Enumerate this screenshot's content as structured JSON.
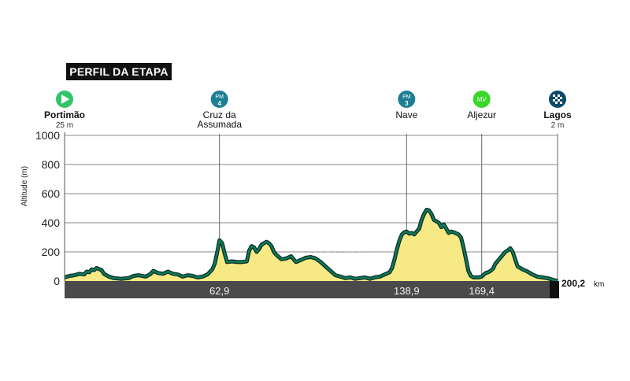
{
  "header": {
    "title": "PERFIL DA ETAPA"
  },
  "colors": {
    "profile_fill": "#f7e983",
    "profile_stroke": "#0f7a5a",
    "start": "#33c46b",
    "climb": "#1d7f93",
    "sprint": "#3ad62a",
    "finish": "#0d4a6b",
    "road": "#4a4a4a"
  },
  "chart_data": {
    "type": "area",
    "ylabel": "Altitude (m)",
    "yticks": [
      "0",
      "200",
      "400",
      "600",
      "800",
      "1000"
    ],
    "ylim": [
      0,
      1000
    ],
    "xlim": [
      0,
      200.2
    ],
    "grid": true,
    "km_labels": [
      "62,9",
      "138,9",
      "169,4"
    ],
    "total_distance": {
      "value": "200,2",
      "unit": "km"
    },
    "waypoints": [
      {
        "km": 0,
        "name": "Portimão",
        "altitude_label": "25 m",
        "marker": "start",
        "icon": "start-flag-icon",
        "badge": "",
        "bold": true
      },
      {
        "km": 62.9,
        "name": "Cruz da Assumada",
        "altitude_label": "",
        "marker": "climb",
        "icon": "mountain-pass-icon",
        "badge": "PM 4",
        "bold": false
      },
      {
        "km": 138.9,
        "name": "Nave",
        "altitude_label": "",
        "marker": "climb",
        "icon": "mountain-pass-icon",
        "badge": "PM 3",
        "bold": false
      },
      {
        "km": 169.4,
        "name": "Aljezur",
        "altitude_label": "",
        "marker": "sprint",
        "icon": "sprint-icon",
        "badge": "MV",
        "bold": false
      },
      {
        "km": 200.2,
        "name": "Lagos",
        "altitude_label": "2 m",
        "marker": "finish",
        "icon": "checkered-flag-icon",
        "badge": "",
        "bold": true
      }
    ],
    "profile": [
      [
        0,
        25
      ],
      [
        2,
        35
      ],
      [
        4,
        40
      ],
      [
        6,
        50
      ],
      [
        8,
        45
      ],
      [
        9,
        65
      ],
      [
        10,
        60
      ],
      [
        11,
        80
      ],
      [
        12,
        75
      ],
      [
        13,
        90
      ],
      [
        15,
        75
      ],
      [
        16,
        50
      ],
      [
        18,
        30
      ],
      [
        20,
        20
      ],
      [
        23,
        15
      ],
      [
        26,
        20
      ],
      [
        28,
        35
      ],
      [
        30,
        40
      ],
      [
        33,
        30
      ],
      [
        35,
        50
      ],
      [
        36,
        70
      ],
      [
        38,
        55
      ],
      [
        40,
        50
      ],
      [
        42,
        65
      ],
      [
        44,
        50
      ],
      [
        46,
        45
      ],
      [
        48,
        30
      ],
      [
        50,
        40
      ],
      [
        52,
        35
      ],
      [
        54,
        25
      ],
      [
        56,
        30
      ],
      [
        58,
        45
      ],
      [
        60,
        80
      ],
      [
        61,
        120
      ],
      [
        62,
        200
      ],
      [
        62.9,
        280
      ],
      [
        64,
        260
      ],
      [
        65,
        190
      ],
      [
        66,
        130
      ],
      [
        68,
        135
      ],
      [
        70,
        130
      ],
      [
        72,
        130
      ],
      [
        74,
        135
      ],
      [
        75,
        210
      ],
      [
        76,
        240
      ],
      [
        77,
        230
      ],
      [
        78,
        200
      ],
      [
        79,
        220
      ],
      [
        80,
        250
      ],
      [
        81,
        260
      ],
      [
        82,
        270
      ],
      [
        83,
        260
      ],
      [
        84,
        240
      ],
      [
        85,
        200
      ],
      [
        86,
        180
      ],
      [
        88,
        150
      ],
      [
        90,
        155
      ],
      [
        92,
        170
      ],
      [
        93,
        150
      ],
      [
        94,
        130
      ],
      [
        96,
        145
      ],
      [
        98,
        160
      ],
      [
        100,
        165
      ],
      [
        102,
        155
      ],
      [
        104,
        130
      ],
      [
        106,
        100
      ],
      [
        108,
        70
      ],
      [
        110,
        40
      ],
      [
        112,
        30
      ],
      [
        114,
        20
      ],
      [
        116,
        25
      ],
      [
        118,
        15
      ],
      [
        120,
        20
      ],
      [
        122,
        25
      ],
      [
        124,
        15
      ],
      [
        126,
        25
      ],
      [
        128,
        30
      ],
      [
        130,
        45
      ],
      [
        132,
        60
      ],
      [
        133,
        90
      ],
      [
        134,
        150
      ],
      [
        135,
        220
      ],
      [
        136,
        280
      ],
      [
        137,
        320
      ],
      [
        138,
        335
      ],
      [
        138.9,
        340
      ],
      [
        140,
        325
      ],
      [
        141,
        330
      ],
      [
        142,
        320
      ],
      [
        143,
        340
      ],
      [
        144,
        360
      ],
      [
        145,
        420
      ],
      [
        146,
        460
      ],
      [
        147,
        490
      ],
      [
        148,
        485
      ],
      [
        149,
        460
      ],
      [
        150,
        420
      ],
      [
        152,
        400
      ],
      [
        153,
        370
      ],
      [
        154,
        390
      ],
      [
        155,
        360
      ],
      [
        156,
        330
      ],
      [
        157,
        340
      ],
      [
        158,
        335
      ],
      [
        160,
        320
      ],
      [
        161,
        300
      ],
      [
        162,
        230
      ],
      [
        163,
        150
      ],
      [
        164,
        70
      ],
      [
        165,
        35
      ],
      [
        166,
        25
      ],
      [
        168,
        25
      ],
      [
        169.4,
        30
      ],
      [
        170,
        40
      ],
      [
        171,
        55
      ],
      [
        172,
        60
      ],
      [
        173,
        70
      ],
      [
        174,
        85
      ],
      [
        175,
        120
      ],
      [
        176,
        140
      ],
      [
        177,
        160
      ],
      [
        178,
        180
      ],
      [
        179,
        200
      ],
      [
        180,
        210
      ],
      [
        181,
        225
      ],
      [
        182,
        200
      ],
      [
        183,
        150
      ],
      [
        184,
        100
      ],
      [
        185,
        90
      ],
      [
        186,
        80
      ],
      [
        188,
        65
      ],
      [
        190,
        45
      ],
      [
        192,
        30
      ],
      [
        194,
        25
      ],
      [
        196,
        20
      ],
      [
        198,
        10
      ],
      [
        199,
        5
      ],
      [
        200.2,
        2
      ]
    ]
  }
}
